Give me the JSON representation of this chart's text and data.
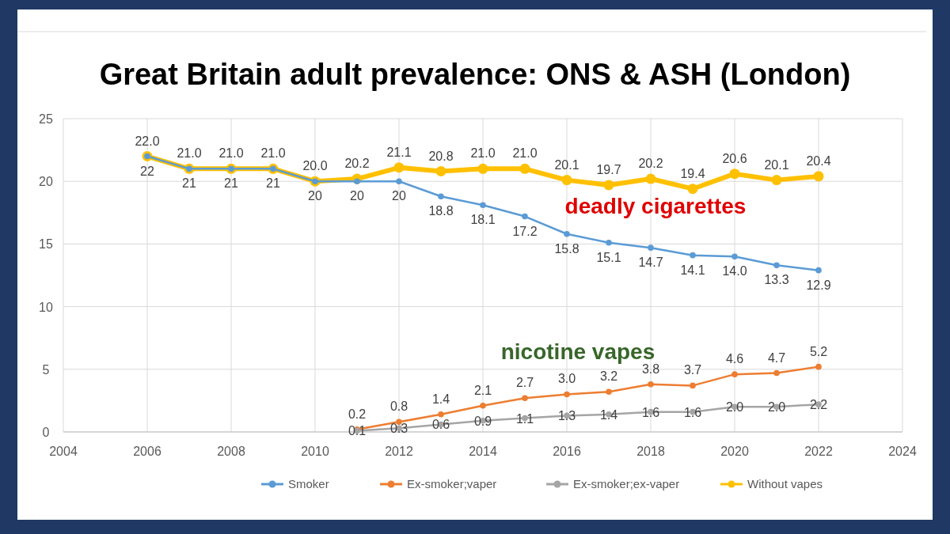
{
  "chart_data": {
    "type": "line",
    "title": "Great Britain adult prevalence:  ONS & ASH (London)",
    "xlim": [
      2004,
      2024
    ],
    "xticks": [
      2004,
      2006,
      2008,
      2010,
      2012,
      2014,
      2016,
      2018,
      2020,
      2022,
      2024
    ],
    "ylim": [
      0,
      25
    ],
    "yticks": [
      0,
      5,
      10,
      15,
      20,
      25
    ],
    "grid": true,
    "legend": "bottom",
    "marker": "circle",
    "line_style": "solid",
    "series": [
      {
        "name": "Smoker",
        "color": "#5b9bd5",
        "x": [
          2006,
          2007,
          2008,
          2009,
          2010,
          2011,
          2012,
          2013,
          2014,
          2015,
          2016,
          2017,
          2018,
          2019,
          2020,
          2021,
          2022
        ],
        "values": [
          22,
          21,
          21,
          21,
          20,
          20,
          20,
          18.8,
          18.1,
          17.2,
          15.8,
          15.1,
          14.7,
          14.1,
          14.0,
          13.3,
          12.9
        ],
        "value_labels": [
          "22",
          "21",
          "21",
          "21",
          "20",
          "20",
          "20",
          "18.8",
          "18.1",
          "17.2",
          "15.8",
          "15.1",
          "14.7",
          "14.1",
          "14.0",
          "13.3",
          "12.9"
        ]
      },
      {
        "name": "Ex-smoker;vaper",
        "color": "#ed7d31",
        "x": [
          2011,
          2012,
          2013,
          2014,
          2015,
          2016,
          2017,
          2018,
          2019,
          2020,
          2021,
          2022
        ],
        "values": [
          0.2,
          0.8,
          1.4,
          2.1,
          2.7,
          3.0,
          3.2,
          3.8,
          3.7,
          4.6,
          4.7,
          5.2
        ],
        "value_labels": [
          "0.2",
          "0.8",
          "1.4",
          "2.1",
          "2.7",
          "3.0",
          "3.2",
          "3.8",
          "3.7",
          "4.6",
          "4.7",
          "5.2"
        ]
      },
      {
        "name": "Ex-smoker;ex-vaper",
        "color": "#a5a5a5",
        "x": [
          2011,
          2012,
          2013,
          2014,
          2015,
          2016,
          2017,
          2018,
          2019,
          2020,
          2021,
          2022
        ],
        "values": [
          0.1,
          0.3,
          0.6,
          0.9,
          1.1,
          1.3,
          1.4,
          1.6,
          1.6,
          2.0,
          2.0,
          2.2
        ],
        "value_labels": [
          "0.1",
          "0.3",
          "0.6",
          "0.9",
          "1.1",
          "1.3",
          "1.4",
          "1.6",
          "1.6",
          "2.0",
          "2.0",
          "2.2"
        ]
      },
      {
        "name": "Without vapes",
        "color": "#ffc000",
        "x": [
          2006,
          2007,
          2008,
          2009,
          2010,
          2011,
          2012,
          2013,
          2014,
          2015,
          2016,
          2017,
          2018,
          2019,
          2020,
          2021,
          2022
        ],
        "values": [
          22.0,
          21.0,
          21.0,
          21.0,
          20.0,
          20.2,
          21.1,
          20.8,
          21.0,
          21.0,
          20.1,
          19.7,
          20.2,
          19.4,
          20.6,
          20.1,
          20.4
        ],
        "value_labels": [
          "22.0",
          "21.0",
          "21.0",
          "21.0",
          "20.0",
          "20.2",
          "21.1",
          "20.8",
          "21.0",
          "21.0",
          "20.1",
          "19.7",
          "20.2",
          "19.4",
          "20.6",
          "20.1",
          "20.4"
        ]
      }
    ],
    "annotations": [
      "deadly cigarettes",
      "nicotine vapes"
    ]
  }
}
